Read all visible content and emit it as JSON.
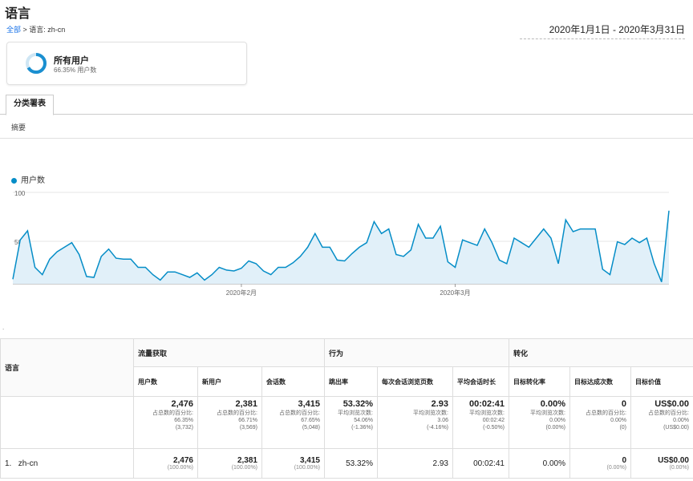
{
  "page": {
    "title": "语言",
    "breadcrumb_all": "全部",
    "breadcrumb_rest": " > 语言: zh-cn",
    "date_range": "2020年1月1日 - 2020年3月31日"
  },
  "segment": {
    "name": "所有用户",
    "sub": "66.35% 用户数"
  },
  "tabs": {
    "explorer": "分类署表",
    "summary": "摘要"
  },
  "chart_data": {
    "type": "line",
    "series": [
      {
        "name": "用户数",
        "color": "#058dc7",
        "values": [
          5,
          48,
          58,
          18,
          10,
          27,
          35,
          40,
          45,
          32,
          8,
          7,
          30,
          38,
          28,
          27,
          27,
          18,
          18,
          10,
          4,
          13,
          13,
          10,
          7,
          12,
          4,
          10,
          18,
          15,
          14,
          17,
          25,
          22,
          14,
          10,
          18,
          18,
          23,
          30,
          40,
          55,
          40,
          40,
          26,
          25,
          33,
          40,
          45,
          68,
          55,
          60,
          32,
          30,
          37,
          65,
          50,
          50,
          63,
          24,
          18,
          48,
          45,
          42,
          60,
          45,
          26,
          22,
          50,
          45,
          40,
          50,
          60,
          50,
          22,
          70,
          57,
          60,
          60,
          60,
          16,
          10,
          46,
          43,
          50,
          45,
          50,
          22,
          2,
          80
        ]
      }
    ],
    "y_ticks": [
      "100",
      "50"
    ],
    "ylim": [
      0,
      100
    ],
    "x_ticks": [
      {
        "label": "2020年2月",
        "index": 31
      },
      {
        "label": "2020年3月",
        "index": 60
      }
    ]
  },
  "table": {
    "dim_header": "语言",
    "groups": [
      "流量获取",
      "行为",
      "转化"
    ],
    "metrics": [
      "用户数",
      "新用户",
      "会话数",
      "跳出率",
      "每次会话浏览页数",
      "平均会话时长",
      "目标转化率",
      "目标达成次数",
      "目标价值"
    ],
    "totals": [
      {
        "value": "2,476",
        "l1": "占总数的百分比:",
        "l2": "66.35%",
        "l3": "(3,732)"
      },
      {
        "value": "2,381",
        "l1": "占总数的百分比:",
        "l2": "66.71%",
        "l3": "(3,569)"
      },
      {
        "value": "3,415",
        "l1": "占总数的百分比:",
        "l2": "67.65%",
        "l3": "(5,048)"
      },
      {
        "value": "53.32%",
        "l1": "平均浏览次数:",
        "l2": "54.06%",
        "l3": "(-1.36%)"
      },
      {
        "value": "2.93",
        "l1": "平均浏览次数:",
        "l2": "3.06",
        "l3": "(-4.16%)"
      },
      {
        "value": "00:02:41",
        "l1": "平均浏览次数:",
        "l2": "00:02:42",
        "l3": "(-0.50%)"
      },
      {
        "value": "0.00%",
        "l1": "平均浏览次数:",
        "l2": "0.00%",
        "l3": "(0.00%)"
      },
      {
        "value": "0",
        "l1": "占总数的百分比:",
        "l2": "0.00%",
        "l3": "(0)"
      },
      {
        "value": "US$0.00",
        "l1": "占总数的百分比:",
        "l2": "0.00%",
        "l3": "(US$0.00)"
      }
    ],
    "rows": [
      {
        "idx": "1.",
        "label": "zh-cn",
        "cells": [
          {
            "v": "2,476",
            "p": "(100.00%)"
          },
          {
            "v": "2,381",
            "p": "(100.00%)"
          },
          {
            "v": "3,415",
            "p": "(100.00%)"
          },
          {
            "v": "53.32%",
            "p": ""
          },
          {
            "v": "2.93",
            "p": ""
          },
          {
            "v": "00:02:41",
            "p": ""
          },
          {
            "v": "0.00%",
            "p": ""
          },
          {
            "v": "0",
            "p": "(0.00%)"
          },
          {
            "v": "US$0.00",
            "p": "(0.00%)"
          }
        ]
      }
    ]
  }
}
